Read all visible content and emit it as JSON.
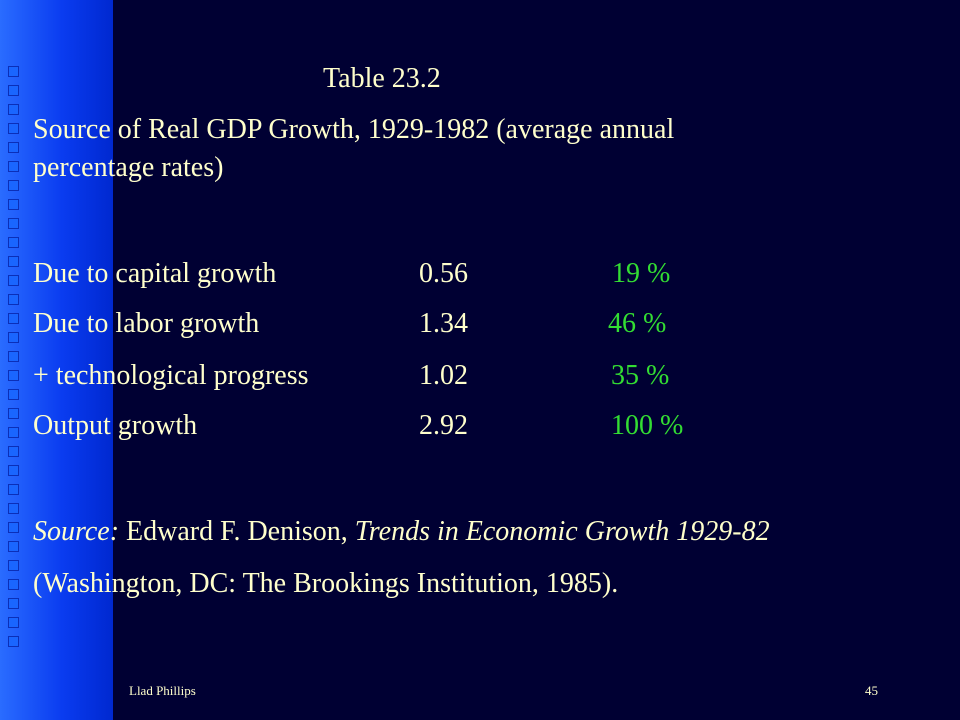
{
  "slide": {
    "table_label": "Table 23.2",
    "title_line1": "Source of Real GDP Growth, 1929-1982 (average annual",
    "title_line2": "percentage rates)",
    "rows": [
      {
        "label": "Due to capital growth",
        "value": "0.56",
        "share": "19 %"
      },
      {
        "label": "Due to labor growth",
        "value": "1.34",
        "share": "46 %"
      },
      {
        "label": "+ technological progress",
        "value": "1.02",
        "share": "35 %"
      },
      {
        "label": "Output growth",
        "value": "2.92",
        "share": "100 %"
      }
    ],
    "source_prefix": "Source:",
    "source_author": " Edward F. Denison, ",
    "source_book": "Trends in Economic Growth 1929-82",
    "source_line2": "(Washington,  DC: The Brookings Institution, 1985)."
  },
  "footer": {
    "author": "Llad Phillips",
    "page_number": "45"
  },
  "colors": {
    "background": "#000033",
    "text": "#ffffcc",
    "percent": "#33dd33",
    "sidebar": "#0a3cf0"
  }
}
